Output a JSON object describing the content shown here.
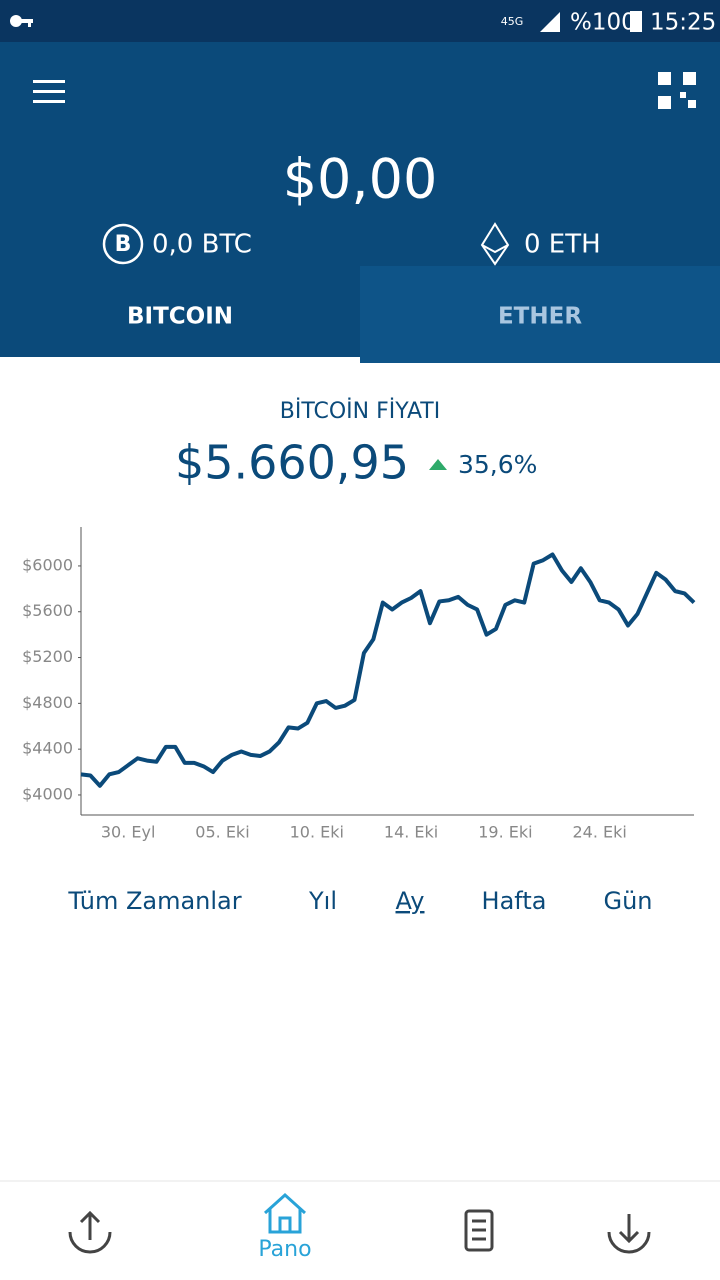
{
  "status_bar": {
    "network": "45G",
    "battery": "%100",
    "time": "15:25"
  },
  "header": {
    "balance": "$0,00",
    "btc": "0,0 BTC",
    "eth": "0 ETH"
  },
  "tabs": [
    "BITCOIN",
    "ETHER"
  ],
  "price": {
    "title": "BİTCOİN FİYATI",
    "value": "$5.660,95",
    "change": "35,6%"
  },
  "chart_data": {
    "type": "line",
    "color": "#0b4a7a",
    "categories": [
      null,
      null,
      null,
      null,
      null,
      "30. Eyl",
      null,
      null,
      null,
      null,
      null,
      null,
      null,
      null,
      null,
      "05. Eki",
      null,
      null,
      null,
      null,
      null,
      null,
      null,
      null,
      null,
      "10. Eki",
      null,
      null,
      null,
      null,
      null,
      null,
      null,
      null,
      null,
      "14. Eki",
      null,
      null,
      null,
      null,
      null,
      null,
      null,
      null,
      null,
      "19. Eki",
      null,
      null,
      null,
      null,
      null,
      null,
      null,
      null,
      null,
      "24. Eki",
      null,
      null,
      null,
      null,
      null,
      null,
      null,
      null,
      null,
      null
    ],
    "values": [
      4180,
      4170,
      4080,
      4180,
      4200,
      4260,
      4320,
      4300,
      4290,
      4420,
      4420,
      4280,
      4280,
      4250,
      4200,
      4300,
      4350,
      4380,
      4350,
      4340,
      4380,
      4460,
      4590,
      4580,
      4630,
      4800,
      4820,
      4760,
      4780,
      4830,
      5240,
      5360,
      5680,
      5620,
      5680,
      5720,
      5780,
      5500,
      5690,
      5700,
      5730,
      5660,
      5620,
      5400,
      5450,
      5660,
      5700,
      5680,
      6020,
      6050,
      6100,
      5960,
      5860,
      5980,
      5860,
      5700,
      5680,
      5620,
      5480,
      5580,
      5760,
      5940,
      5880,
      5780,
      5760,
      5680
    ],
    "ylim": [
      3825,
      6340
    ],
    "yticks": [
      {
        "value": 4000,
        "label": "$4000"
      },
      {
        "value": 4400,
        "label": "$4400"
      },
      {
        "value": 4800,
        "label": "$4800"
      },
      {
        "value": 5200,
        "label": "$5200"
      },
      {
        "value": 5600,
        "label": "$5600"
      },
      {
        "value": 6000,
        "label": "$6000"
      }
    ]
  },
  "periods": [
    "Tüm Zamanlar",
    "Yıl",
    "Ay",
    "Hafta",
    "Gün"
  ],
  "nav": {
    "home": "Pano"
  }
}
